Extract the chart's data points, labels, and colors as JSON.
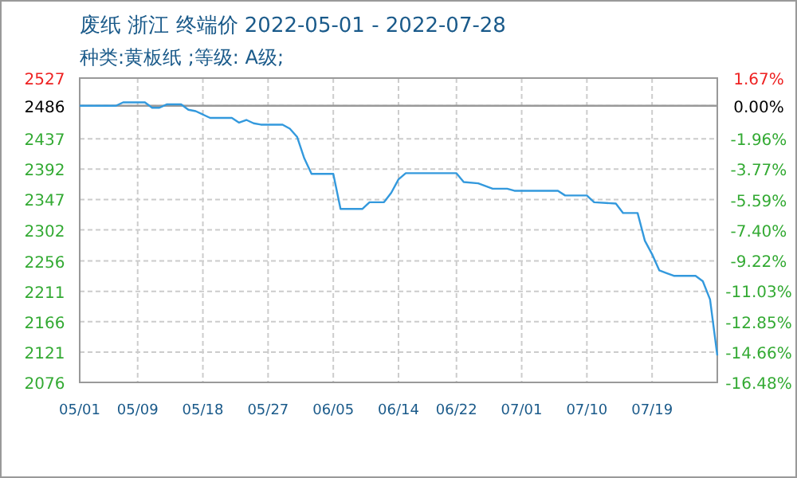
{
  "chart_data": {
    "type": "line",
    "title": "废纸 浙江 终端价 2022-05-01 - 2022-07-28",
    "subtitle": "种类:黄板纸 ;等级: A级;",
    "x": [
      "2022-05-01",
      "2022-05-06",
      "2022-05-07",
      "2022-05-10",
      "2022-05-11",
      "2022-05-12",
      "2022-05-13",
      "2022-05-15",
      "2022-05-16",
      "2022-05-17",
      "2022-05-19",
      "2022-05-22",
      "2022-05-23",
      "2022-05-24",
      "2022-05-25",
      "2022-05-26",
      "2022-05-29",
      "2022-05-30",
      "2022-05-31",
      "2022-06-01",
      "2022-06-02",
      "2022-06-05",
      "2022-06-06",
      "2022-06-09",
      "2022-06-10",
      "2022-06-12",
      "2022-06-13",
      "2022-06-14",
      "2022-06-15",
      "2022-06-22",
      "2022-06-23",
      "2022-06-25",
      "2022-06-27",
      "2022-06-29",
      "2022-06-30",
      "2022-07-06",
      "2022-07-07",
      "2022-07-10",
      "2022-07-11",
      "2022-07-14",
      "2022-07-15",
      "2022-07-17",
      "2022-07-18",
      "2022-07-19",
      "2022-07-20",
      "2022-07-21",
      "2022-07-22",
      "2022-07-25",
      "2022-07-26",
      "2022-07-27",
      "2022-07-28"
    ],
    "series": [
      {
        "color": "#3399dd",
        "values": [
          2486,
          2486,
          2491,
          2491,
          2483,
          2483,
          2488,
          2488,
          2480,
          2478,
          2468,
          2468,
          2461,
          2465,
          2460,
          2458,
          2458,
          2452,
          2440,
          2408,
          2385,
          2385,
          2333,
          2333,
          2343,
          2343,
          2357,
          2377,
          2386,
          2386,
          2373,
          2371,
          2363,
          2363,
          2360,
          2360,
          2353,
          2353,
          2343,
          2341,
          2327,
          2327,
          2286,
          2266,
          2242,
          2238,
          2234,
          2234,
          2226,
          2199,
          2116
        ]
      }
    ],
    "xlim": [
      "2022-05-01",
      "2022-07-28"
    ],
    "xticks": [
      {
        "value": "2022-05-01",
        "label": "05/01"
      },
      {
        "value": "2022-05-09",
        "label": "05/09"
      },
      {
        "value": "2022-05-18",
        "label": "05/18"
      },
      {
        "value": "2022-05-27",
        "label": "05/27"
      },
      {
        "value": "2022-06-05",
        "label": "06/05"
      },
      {
        "value": "2022-06-14",
        "label": "06/14"
      },
      {
        "value": "2022-06-22",
        "label": "06/22"
      },
      {
        "value": "2022-07-01",
        "label": "07/01"
      },
      {
        "value": "2022-07-10",
        "label": "07/10"
      },
      {
        "value": "2022-07-19",
        "label": "07/19"
      }
    ],
    "ylim": [
      2076,
      2527
    ],
    "yticks": [
      2076,
      2121,
      2166,
      2211,
      2256,
      2302,
      2347,
      2392,
      2437,
      2486,
      2527
    ],
    "y2lim": [
      -16.48,
      1.67
    ],
    "y2ticks": [
      {
        "value": -16.48,
        "label": "-16.48%"
      },
      {
        "value": -14.66,
        "label": "-14.66%"
      },
      {
        "value": -12.85,
        "label": "-12.85%"
      },
      {
        "value": -11.03,
        "label": "-11.03%"
      },
      {
        "value": -9.22,
        "label": "-9.22%"
      },
      {
        "value": -7.4,
        "label": "-7.40%"
      },
      {
        "value": -5.59,
        "label": "-5.59%"
      },
      {
        "value": -3.77,
        "label": "-3.77%"
      },
      {
        "value": -1.96,
        "label": "-1.96%"
      },
      {
        "value": 0,
        "label": "0.00%"
      },
      {
        "value": 1.67,
        "label": "1.67%"
      }
    ],
    "ref_lines": [
      {
        "axis": "y",
        "value": 2486,
        "color": "#999999"
      }
    ],
    "grid": true,
    "marker": "none",
    "line_style": "solid"
  }
}
